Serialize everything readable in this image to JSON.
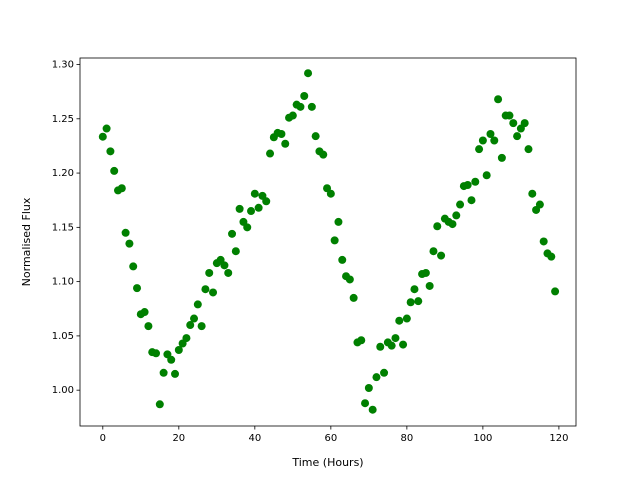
{
  "chart_data": {
    "type": "scatter",
    "xlabel": "Time (Hours)",
    "ylabel": "Normalised Flux",
    "color": "#008000",
    "grid": false,
    "xlim": [
      -6,
      124.5
    ],
    "ylim": [
      0.967,
      1.306
    ],
    "xticks": [
      0,
      20,
      40,
      60,
      80,
      100,
      120
    ],
    "yticks": [
      {
        "value": 1.0,
        "label": "1.00"
      },
      1.05,
      {
        "value": 1.1,
        "label": "1.10"
      },
      1.15,
      {
        "value": 1.2,
        "label": "1.20"
      },
      1.25,
      {
        "value": 1.3,
        "label": "1.30"
      }
    ],
    "x": [
      0,
      1,
      2,
      3,
      4,
      5,
      6,
      7,
      8,
      9,
      10,
      11,
      12,
      13,
      14,
      15,
      16,
      17,
      18,
      19,
      20,
      21,
      22,
      23,
      24,
      25,
      26,
      27,
      28,
      29,
      30,
      31,
      32,
      33,
      34,
      35,
      36,
      37,
      38,
      39,
      40,
      41,
      42,
      43,
      44,
      45,
      46,
      47,
      48,
      49,
      50,
      51,
      52,
      53,
      54,
      55,
      56,
      57,
      58,
      59,
      60,
      61,
      62,
      63,
      64,
      65,
      66,
      67,
      68,
      69,
      70,
      71,
      72,
      73,
      74,
      75,
      76,
      77,
      78,
      79,
      80,
      81,
      82,
      83,
      84,
      85,
      86,
      87,
      88,
      89,
      90,
      91,
      92,
      93,
      94,
      95,
      96,
      97,
      98,
      99,
      100,
      101,
      102,
      103,
      104,
      105,
      106,
      107,
      108,
      109,
      110,
      111,
      112,
      113,
      114,
      115,
      116,
      117,
      118,
      119
    ],
    "values": [
      1.2335,
      1.241,
      1.22,
      1.202,
      1.184,
      1.186,
      1.145,
      1.135,
      1.114,
      1.094,
      1.07,
      1.072,
      1.059,
      1.035,
      1.034,
      0.987,
      1.016,
      1.033,
      1.028,
      1.015,
      1.037,
      1.043,
      1.048,
      1.06,
      1.066,
      1.079,
      1.059,
      1.093,
      1.108,
      1.09,
      1.117,
      1.12,
      1.115,
      1.108,
      1.144,
      1.128,
      1.167,
      1.155,
      1.15,
      1.165,
      1.181,
      1.168,
      1.179,
      1.174,
      1.218,
      1.233,
      1.237,
      1.236,
      1.227,
      1.251,
      1.253,
      1.263,
      1.261,
      1.271,
      1.292,
      1.261,
      1.234,
      1.22,
      1.217,
      1.186,
      1.181,
      1.138,
      1.155,
      1.12,
      1.105,
      1.102,
      1.085,
      1.044,
      1.046,
      0.988,
      1.002,
      0.982,
      1.012,
      1.04,
      1.016,
      1.044,
      1.041,
      1.048,
      1.064,
      1.042,
      1.066,
      1.081,
      1.093,
      1.082,
      1.107,
      1.108,
      1.096,
      1.128,
      1.151,
      1.124,
      1.158,
      1.155,
      1.153,
      1.161,
      1.171,
      1.188,
      1.189,
      1.175,
      1.192,
      1.222,
      1.23,
      1.198,
      1.236,
      1.23,
      1.268,
      1.214,
      1.253,
      1.253,
      1.246,
      1.234,
      1.241,
      1.246,
      1.222,
      1.181,
      1.166,
      1.171,
      1.137,
      1.126,
      1.123,
      1.091
    ]
  }
}
